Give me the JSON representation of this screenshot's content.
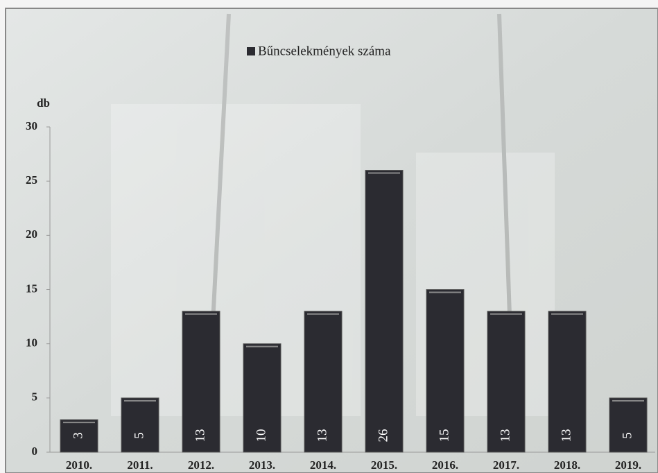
{
  "chart_data": {
    "type": "bar",
    "categories": [
      "2010.",
      "2011.",
      "2012.",
      "2013.",
      "2014.",
      "2015.",
      "2016.",
      "2017.",
      "2018.",
      "2019."
    ],
    "series": [
      {
        "name": "Bűncselekmények száma",
        "color": "#2b2b31",
        "values": [
          3,
          5,
          13,
          10,
          13,
          26,
          15,
          13,
          13,
          5
        ]
      }
    ],
    "y_label": "db",
    "ylim": [
      0,
      30
    ],
    "yticks": [
      0,
      5,
      10,
      15,
      20,
      25,
      30
    ],
    "legend": "top",
    "data_labels": true,
    "grid": false
  }
}
